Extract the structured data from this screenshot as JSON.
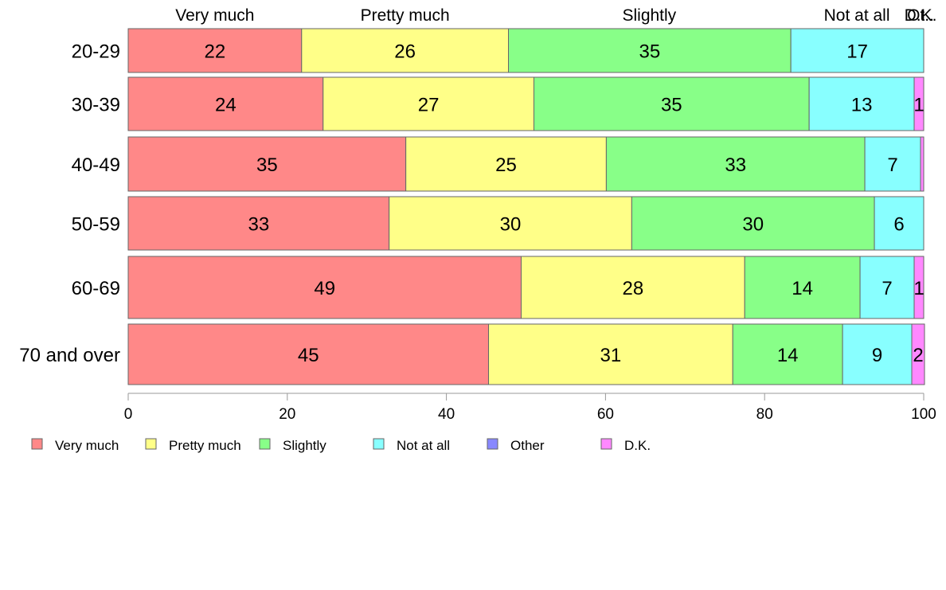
{
  "chart_data": {
    "type": "bar",
    "orientation": "horizontal",
    "stacked": true,
    "categories": [
      "20-29",
      "30-39",
      "40-49",
      "50-59",
      "60-69",
      "70 and over"
    ],
    "series": [
      {
        "name": "Very much",
        "color": "#ff8888",
        "values": [
          21.8,
          24.5,
          34.9,
          32.8,
          49.4,
          45.3
        ],
        "labels": [
          "22",
          "24",
          "35",
          "33",
          "49",
          "45"
        ]
      },
      {
        "name": "Pretty much",
        "color": "#ffff88",
        "values": [
          26.0,
          26.5,
          25.2,
          30.5,
          28.1,
          30.7
        ],
        "labels": [
          "26",
          "27",
          "25",
          "30",
          "28",
          "31"
        ]
      },
      {
        "name": "Slightly",
        "color": "#88ff88",
        "values": [
          35.5,
          34.6,
          32.5,
          30.5,
          14.5,
          13.8
        ],
        "labels": [
          "35",
          "35",
          "33",
          "30",
          "14",
          "14"
        ]
      },
      {
        "name": "Not at all",
        "color": "#88ffff",
        "values": [
          16.7,
          13.2,
          7.0,
          6.2,
          6.8,
          8.7
        ],
        "labels": [
          "17",
          "13",
          "7",
          "6",
          "7",
          "9"
        ]
      },
      {
        "name": "Other",
        "color": "#8888ff",
        "values": [
          0,
          0,
          0,
          0,
          0,
          0
        ],
        "labels": [
          "",
          "",
          "",
          "",
          "",
          ""
        ]
      },
      {
        "name": "D.K.",
        "color": "#ff88ff",
        "values": [
          0,
          1.2,
          0.4,
          0,
          1.2,
          1.6
        ],
        "labels": [
          "",
          "1",
          "",
          "",
          "1",
          "2"
        ]
      }
    ],
    "top_labels": [
      {
        "text": "Very much",
        "at": 10.9
      },
      {
        "text": "Pretty much",
        "at": 34.8
      },
      {
        "text": "Slightly",
        "at": 65.5
      },
      {
        "text": "Not at all",
        "at": 91.6
      },
      {
        "text": "Ot..",
        "at": 99.6
      },
      {
        "text": "D.K.",
        "at": 99.6
      }
    ],
    "xlim": [
      0,
      100
    ],
    "xticks": [
      0,
      20,
      40,
      60,
      80,
      100
    ],
    "grid": false,
    "legend": "bottom",
    "title": "",
    "xlabel": "",
    "ylabel": ""
  }
}
